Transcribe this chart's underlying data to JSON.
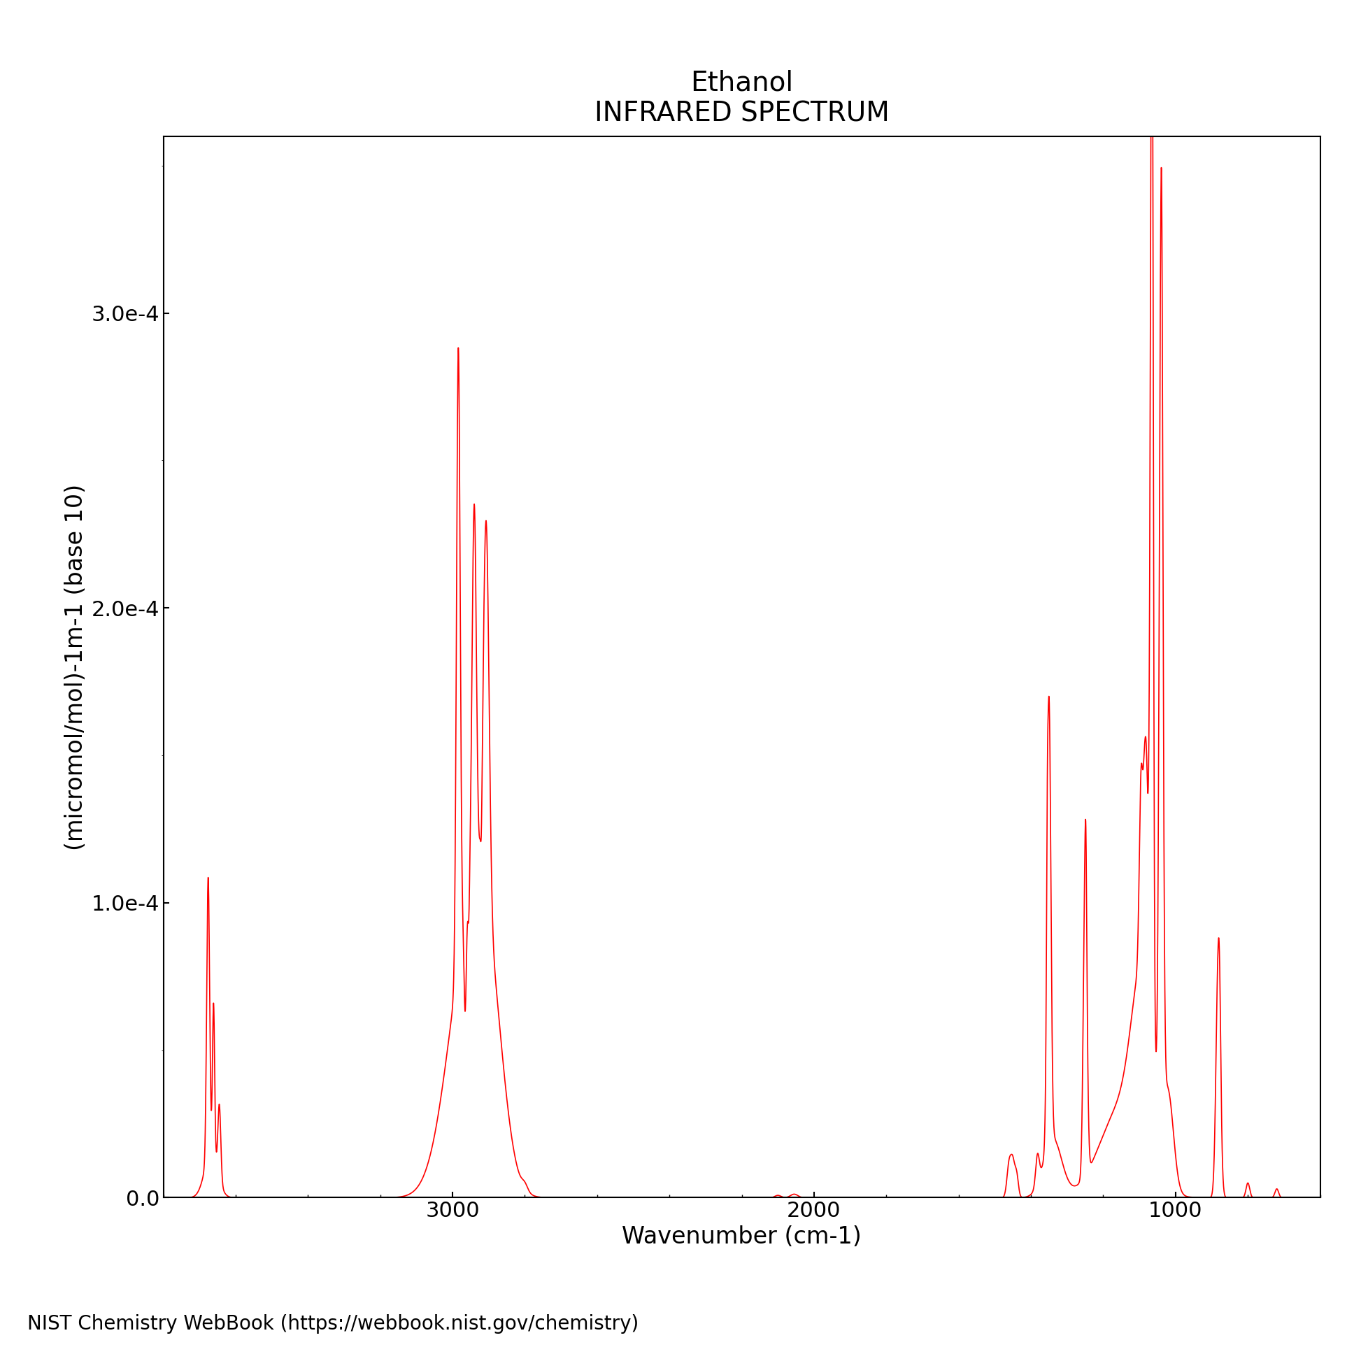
{
  "title_line1": "Ethanol",
  "title_line2": "INFRARED SPECTRUM",
  "xlabel": "Wavenumber (cm-1)",
  "ylabel": "(micromol/mol)-1m-1 (base 10)",
  "xlim": [
    3800,
    600
  ],
  "ylim": [
    0,
    0.00036
  ],
  "yticks": [
    0.0,
    0.0001,
    0.0002,
    0.0003
  ],
  "ytick_labels": [
    "0.0",
    "1.0e-4",
    "2.0e-4",
    "3.0e-4"
  ],
  "xticks": [
    3000,
    2000,
    1000
  ],
  "line_color": "#FF0000",
  "background_color": "#FFFFFF",
  "credit": "NIST Chemistry WebBook (https://webbook.nist.gov/chemistry)",
  "title_fontsize": 28,
  "label_fontsize": 24,
  "tick_fontsize": 22,
  "credit_fontsize": 20
}
